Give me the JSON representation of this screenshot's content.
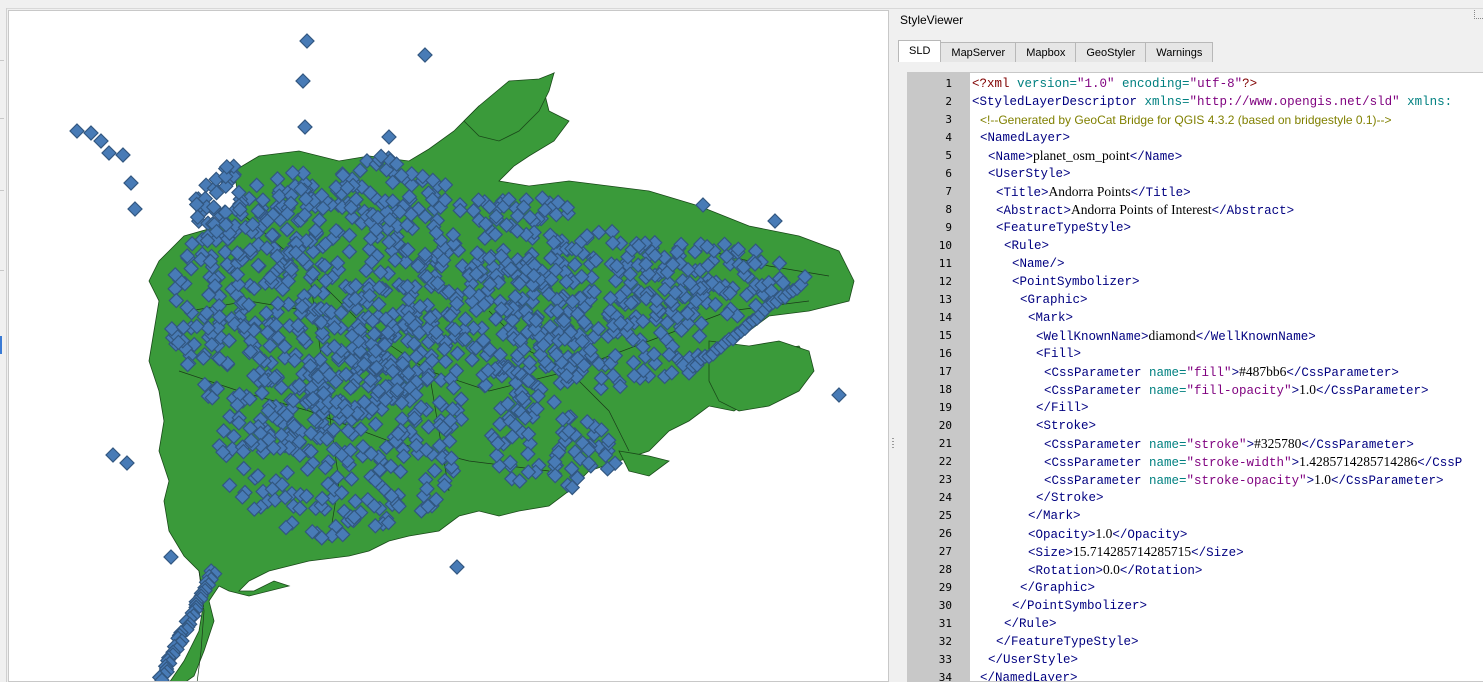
{
  "styleviewer": {
    "title": "StyleViewer",
    "tabs": [
      {
        "label": "SLD",
        "active": true
      },
      {
        "label": "MapServer",
        "active": false
      },
      {
        "label": "Mapbox",
        "active": false
      },
      {
        "label": "GeoStyler",
        "active": false
      },
      {
        "label": "Warnings",
        "active": false
      }
    ]
  },
  "code_lines": [
    {
      "n": "1",
      "indent": 0,
      "parts": [
        [
          "pi",
          "<?xml "
        ],
        [
          "attr",
          "version="
        ],
        [
          "val",
          "\"1.0\""
        ],
        [
          "attr",
          " encoding="
        ],
        [
          "val",
          "\"utf-8\""
        ],
        [
          "pi",
          "?>"
        ]
      ]
    },
    {
      "n": "2",
      "indent": 0,
      "parts": [
        [
          "tag",
          "<StyledLayerDescriptor "
        ],
        [
          "attr",
          "xmlns="
        ],
        [
          "val",
          "\"http://www.opengis.net/sld\""
        ],
        [
          "attr",
          " xmlns:"
        ]
      ]
    },
    {
      "n": "3",
      "indent": 1,
      "parts": [
        [
          "cmt",
          "<!--Generated by GeoCat Bridge for QGIS 4.3.2 (based on bridgestyle 0.1)-->"
        ]
      ]
    },
    {
      "n": "4",
      "indent": 1,
      "parts": [
        [
          "tag",
          "<NamedLayer>"
        ]
      ]
    },
    {
      "n": "5",
      "indent": 2,
      "parts": [
        [
          "tag",
          "<Name>"
        ],
        [
          "txt",
          "planet_osm_point"
        ],
        [
          "tag",
          "</Name>"
        ]
      ]
    },
    {
      "n": "6",
      "indent": 2,
      "parts": [
        [
          "tag",
          "<UserStyle>"
        ]
      ]
    },
    {
      "n": "7",
      "indent": 3,
      "parts": [
        [
          "tag",
          "<Title>"
        ],
        [
          "txt",
          "Andorra Points"
        ],
        [
          "tag",
          "</Title>"
        ]
      ]
    },
    {
      "n": "8",
      "indent": 3,
      "parts": [
        [
          "tag",
          "<Abstract>"
        ],
        [
          "txt",
          "Andorra Points of Interest"
        ],
        [
          "tag",
          "</Abstract>"
        ]
      ]
    },
    {
      "n": "9",
      "indent": 3,
      "parts": [
        [
          "tag",
          "<FeatureTypeStyle>"
        ]
      ]
    },
    {
      "n": "10",
      "indent": 4,
      "parts": [
        [
          "tag",
          "<Rule>"
        ]
      ]
    },
    {
      "n": "11",
      "indent": 5,
      "parts": [
        [
          "tag",
          "<Name/>"
        ]
      ]
    },
    {
      "n": "12",
      "indent": 5,
      "parts": [
        [
          "tag",
          "<PointSymbolizer>"
        ]
      ]
    },
    {
      "n": "13",
      "indent": 6,
      "parts": [
        [
          "tag",
          "<Graphic>"
        ]
      ]
    },
    {
      "n": "14",
      "indent": 7,
      "parts": [
        [
          "tag",
          "<Mark>"
        ]
      ]
    },
    {
      "n": "15",
      "indent": 8,
      "parts": [
        [
          "tag",
          "<WellKnownName>"
        ],
        [
          "txt",
          "diamond"
        ],
        [
          "tag",
          "</WellKnownName>"
        ]
      ]
    },
    {
      "n": "16",
      "indent": 8,
      "parts": [
        [
          "tag",
          "<Fill>"
        ]
      ]
    },
    {
      "n": "17",
      "indent": 9,
      "parts": [
        [
          "tag",
          "<CssParameter "
        ],
        [
          "attr",
          "name="
        ],
        [
          "val",
          "\"fill\""
        ],
        [
          "tag",
          ">"
        ],
        [
          "txt",
          "#487bb6"
        ],
        [
          "tag",
          "</CssParameter>"
        ]
      ]
    },
    {
      "n": "18",
      "indent": 9,
      "parts": [
        [
          "tag",
          "<CssParameter "
        ],
        [
          "attr",
          "name="
        ],
        [
          "val",
          "\"fill-opacity\""
        ],
        [
          "tag",
          ">"
        ],
        [
          "txt",
          "1.0"
        ],
        [
          "tag",
          "</CssParameter>"
        ]
      ]
    },
    {
      "n": "19",
      "indent": 8,
      "parts": [
        [
          "tag",
          "</Fill>"
        ]
      ]
    },
    {
      "n": "20",
      "indent": 8,
      "parts": [
        [
          "tag",
          "<Stroke>"
        ]
      ]
    },
    {
      "n": "21",
      "indent": 9,
      "parts": [
        [
          "tag",
          "<CssParameter "
        ],
        [
          "attr",
          "name="
        ],
        [
          "val",
          "\"stroke\""
        ],
        [
          "tag",
          ">"
        ],
        [
          "txt",
          "#325780"
        ],
        [
          "tag",
          "</CssParameter>"
        ]
      ]
    },
    {
      "n": "22",
      "indent": 9,
      "parts": [
        [
          "tag",
          "<CssParameter "
        ],
        [
          "attr",
          "name="
        ],
        [
          "val",
          "\"stroke-width\""
        ],
        [
          "tag",
          ">"
        ],
        [
          "txt",
          "1.4285714285714286"
        ],
        [
          "tag",
          "</CssP"
        ]
      ]
    },
    {
      "n": "23",
      "indent": 9,
      "parts": [
        [
          "tag",
          "<CssParameter "
        ],
        [
          "attr",
          "name="
        ],
        [
          "val",
          "\"stroke-opacity\""
        ],
        [
          "tag",
          ">"
        ],
        [
          "txt",
          "1.0"
        ],
        [
          "tag",
          "</CssParameter>"
        ]
      ]
    },
    {
      "n": "24",
      "indent": 8,
      "parts": [
        [
          "tag",
          "</Stroke>"
        ]
      ]
    },
    {
      "n": "25",
      "indent": 7,
      "parts": [
        [
          "tag",
          "</Mark>"
        ]
      ]
    },
    {
      "n": "26",
      "indent": 7,
      "parts": [
        [
          "tag",
          "<Opacity>"
        ],
        [
          "txt",
          "1.0"
        ],
        [
          "tag",
          "</Opacity>"
        ]
      ]
    },
    {
      "n": "27",
      "indent": 7,
      "parts": [
        [
          "tag",
          "<Size>"
        ],
        [
          "txt",
          "15.714285714285715"
        ],
        [
          "tag",
          "</Size>"
        ]
      ]
    },
    {
      "n": "28",
      "indent": 7,
      "parts": [
        [
          "tag",
          "<Rotation>"
        ],
        [
          "txt",
          "0.0"
        ],
        [
          "tag",
          "</Rotation>"
        ]
      ]
    },
    {
      "n": "29",
      "indent": 6,
      "parts": [
        [
          "tag",
          "</Graphic>"
        ]
      ]
    },
    {
      "n": "30",
      "indent": 5,
      "parts": [
        [
          "tag",
          "</PointSymbolizer>"
        ]
      ]
    },
    {
      "n": "31",
      "indent": 4,
      "parts": [
        [
          "tag",
          "</Rule>"
        ]
      ]
    },
    {
      "n": "32",
      "indent": 3,
      "parts": [
        [
          "tag",
          "</FeatureTypeStyle>"
        ]
      ]
    },
    {
      "n": "33",
      "indent": 2,
      "parts": [
        [
          "tag",
          "</UserStyle>"
        ]
      ]
    },
    {
      "n": "34",
      "indent": 1,
      "parts": [
        [
          "tag",
          "</NamedLayer>"
        ]
      ]
    }
  ],
  "map": {
    "polygon_fill": "#3a9a3a",
    "marker_fill": "#487bb6",
    "marker_stroke": "#325780"
  }
}
